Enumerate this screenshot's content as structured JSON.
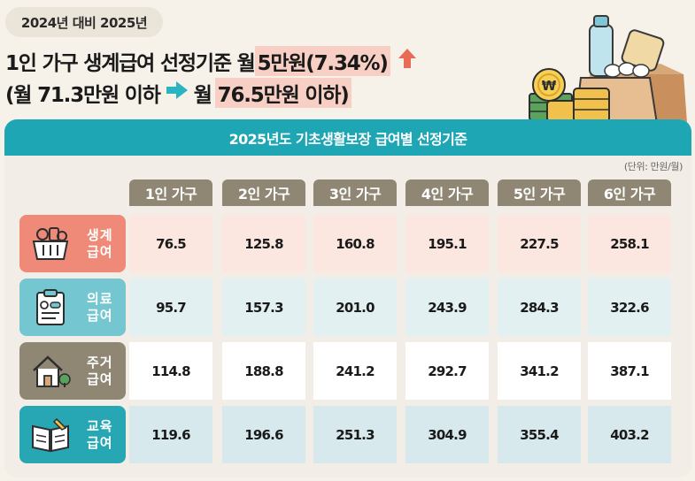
{
  "tag": "2024년 대비 2025년",
  "headline": {
    "prefix": "1인 가구 생계급여 선정기준 월 ",
    "highlight": "5만원(7.34%)",
    "arrow_icon": "up-arrow-icon",
    "arrow_color": "#ea6b55"
  },
  "subline": {
    "from": "(월 71.3만원 이하",
    "arrow_icon": "right-arrow-icon",
    "arrow_color": "#2ab3c0",
    "to_prefix": "월 ",
    "to_highlight": "76.5만원 이하)"
  },
  "panel": {
    "title": "2025년도 기초생활보장 급여별 선정기준",
    "unit": "(단위: 만원/월)"
  },
  "columns": [
    "1인 가구",
    "2인 가구",
    "3인 가구",
    "4인 가구",
    "5인 가구",
    "6인 가구"
  ],
  "rows": [
    {
      "label1": "생계",
      "label2": "급여",
      "icon": "shopping-basket-icon",
      "values": [
        "76.5",
        "125.8",
        "160.8",
        "195.1",
        "227.5",
        "258.1"
      ]
    },
    {
      "label1": "의료",
      "label2": "급여",
      "icon": "medical-clipboard-icon",
      "values": [
        "95.7",
        "157.3",
        "201.0",
        "243.9",
        "284.3",
        "322.6"
      ]
    },
    {
      "label1": "주거",
      "label2": "급여",
      "icon": "house-icon",
      "values": [
        "114.8",
        "188.8",
        "241.2",
        "292.7",
        "341.2",
        "387.1"
      ]
    },
    {
      "label1": "교육",
      "label2": "급여",
      "icon": "open-book-icon",
      "values": [
        "119.6",
        "196.6",
        "251.3",
        "304.9",
        "355.4",
        "403.2"
      ]
    }
  ],
  "colors": {
    "accent_teal": "#1ea6b4",
    "header_gray": "#8f8774",
    "highlight_pink": "#f7cfc4"
  }
}
